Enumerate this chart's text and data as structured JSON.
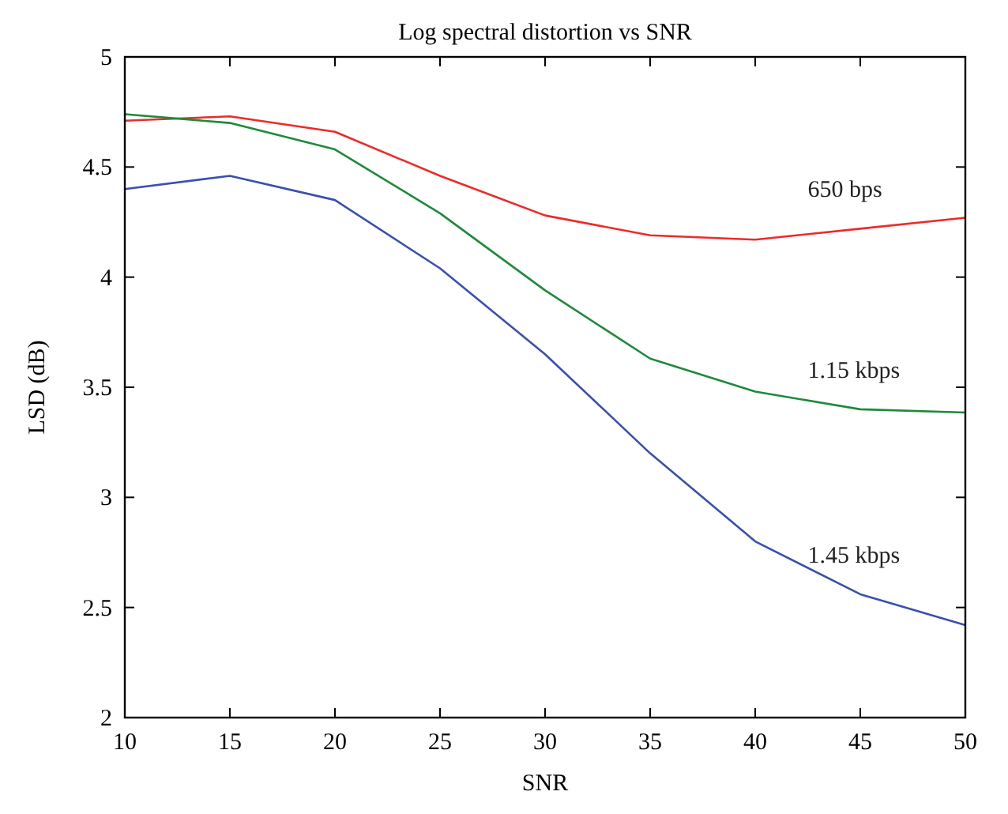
{
  "chart_data": {
    "type": "line",
    "title": "Log spectral distortion vs SNR",
    "xlabel": "SNR",
    "ylabel": "LSD (dB)",
    "x": [
      10,
      15,
      20,
      25,
      30,
      35,
      40,
      45,
      50
    ],
    "xlim": [
      10,
      50
    ],
    "xticks": [
      10,
      15,
      20,
      25,
      30,
      35,
      40,
      45,
      50
    ],
    "ylim": [
      2,
      5
    ],
    "yticks": [
      2,
      2.5,
      3,
      3.5,
      4,
      4.5,
      5
    ],
    "grid": false,
    "series": [
      {
        "name": "650 bps",
        "color": "#ee2a2a",
        "values": [
          4.71,
          4.73,
          4.66,
          4.46,
          4.28,
          4.19,
          4.17,
          4.22,
          4.27
        ]
      },
      {
        "name": "1.15 kbps",
        "color": "#1e8a3a",
        "values": [
          4.74,
          4.7,
          4.58,
          4.29,
          3.94,
          3.63,
          3.48,
          3.4,
          3.385
        ]
      },
      {
        "name": "1.45 kbps",
        "color": "#3a4fb0",
        "values": [
          4.4,
          4.46,
          4.35,
          4.04,
          3.65,
          3.2,
          2.8,
          2.56,
          2.42
        ]
      }
    ]
  }
}
